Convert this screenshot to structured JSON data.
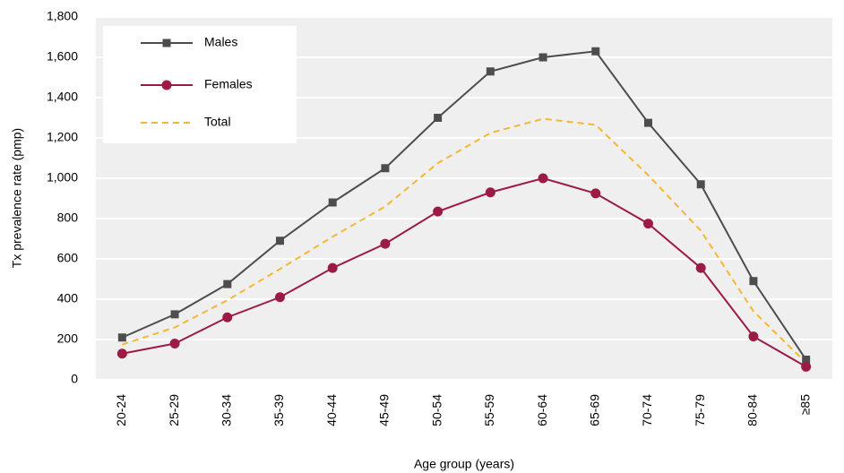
{
  "chart_data": {
    "type": "line",
    "x_label": "Age group (years)",
    "y_label": "Tx prevalence rate (pmp)",
    "categories": [
      "20-24",
      "25-29",
      "30-34",
      "35-39",
      "40-44",
      "45-49",
      "50-54",
      "55-59",
      "60-64",
      "65-69",
      "70-74",
      "75-79",
      "80-84",
      "≥85"
    ],
    "series": [
      {
        "name": "Males",
        "color": "#4d4d4d",
        "marker": "square",
        "values": [
          210,
          325,
          475,
          690,
          880,
          1050,
          1300,
          1530,
          1600,
          1630,
          1275,
          970,
          490,
          100
        ]
      },
      {
        "name": "Females",
        "color": "#9b1b45",
        "marker": "circle",
        "values": [
          130,
          180,
          310,
          410,
          555,
          675,
          835,
          930,
          1000,
          925,
          775,
          555,
          215,
          65
        ]
      },
      {
        "name": "Total",
        "color": "#f5b731",
        "dashed": true,
        "values": [
          175,
          260,
          395,
          550,
          710,
          860,
          1075,
          1225,
          1295,
          1265,
          1015,
          740,
          340,
          85
        ]
      }
    ],
    "ylim": [
      0,
      1800
    ],
    "yticks": [
      0,
      200,
      400,
      600,
      800,
      {
        "value": 1000,
        "label": "1,000"
      },
      {
        "value": 1200,
        "label": "1,200"
      },
      {
        "value": 1400,
        "label": "1,400"
      },
      {
        "value": 1600,
        "label": "1,600"
      },
      {
        "value": 1800,
        "label": "1,800"
      }
    ],
    "grid": true,
    "legend": "top-left"
  }
}
